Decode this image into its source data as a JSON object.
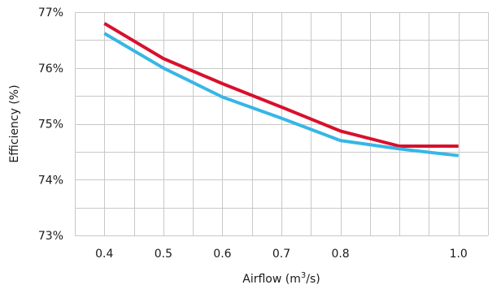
{
  "chart_data": {
    "type": "line",
    "title": "",
    "xlabel": "Airflow (m",
    "xlabel_sup": "3",
    "xlabel_suffix": "/s)",
    "ylabel": "Efficiency (%)",
    "xlim": [
      0.35,
      1.05
    ],
    "ylim": [
      73,
      77
    ],
    "x_ticks": [
      0.4,
      0.5,
      0.6,
      0.7,
      0.8,
      1.0
    ],
    "x_tick_labels": [
      "0.4",
      "0.5",
      "0.6",
      "0.7",
      "0.8",
      "1.0"
    ],
    "y_ticks": [
      73,
      74,
      75,
      76,
      77
    ],
    "y_tick_labels": [
      "73%",
      "74%",
      "75%",
      "76%",
      "77%"
    ],
    "grid": true,
    "legend": "none",
    "x": [
      0.4,
      0.5,
      0.6,
      0.7,
      0.8,
      0.9,
      1.0
    ],
    "series": [
      {
        "color": "#d8102c",
        "values": [
          76.8,
          76.17,
          75.72,
          75.3,
          74.87,
          74.6,
          74.6
        ]
      },
      {
        "color": "#37b6e6",
        "values": [
          76.62,
          76.0,
          75.48,
          75.1,
          74.7,
          74.55,
          74.43
        ]
      }
    ]
  }
}
